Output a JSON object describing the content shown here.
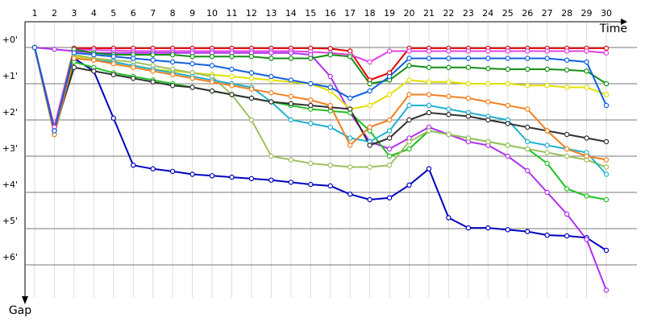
{
  "chart_data": {
    "type": "line",
    "x_label": "Time",
    "y_label": "Gap",
    "categories": [
      "1",
      "2",
      "3",
      "4",
      "5",
      "6",
      "7",
      "8",
      "9",
      "10",
      "11",
      "12",
      "13",
      "14",
      "15",
      "16",
      "17",
      "18",
      "19",
      "20",
      "21",
      "22",
      "23",
      "24",
      "25",
      "26",
      "27",
      "28",
      "29",
      "30"
    ],
    "ylim": [
      -0.6,
      7
    ],
    "yticks": [
      {
        "value": 0,
        "label": "+0'"
      },
      {
        "value": 1,
        "label": "+1'"
      },
      {
        "value": 2,
        "label": "+2'"
      },
      {
        "value": 3,
        "label": "+3'"
      },
      {
        "value": 4,
        "label": "+4'"
      },
      {
        "value": 5,
        "label": "+5'"
      },
      {
        "value": 6,
        "label": "+6'"
      }
    ],
    "y_inverted": true,
    "grid": true,
    "series": [
      {
        "color": "#e00000",
        "values": [
          0,
          2.2,
          0.02,
          0.02,
          0.02,
          0.02,
          0.02,
          0.02,
          0.02,
          0.02,
          0.02,
          0.02,
          0.02,
          0.02,
          0.02,
          0.03,
          0.1,
          0.9,
          0.7,
          0.02,
          0.02,
          0.02,
          0.02,
          0.02,
          0.02,
          0.02,
          0.02,
          0.02,
          0.02,
          0.02
        ]
      },
      {
        "color": "#e040e0",
        "values": [
          0,
          2.2,
          0.05,
          0.07,
          0.08,
          0.1,
          0.1,
          0.1,
          0.1,
          0.1,
          0.1,
          0.1,
          0.1,
          0.1,
          0.12,
          0.15,
          0.2,
          0.4,
          0.1,
          0.1,
          0.1,
          0.1,
          0.1,
          0.1,
          0.1,
          0.1,
          0.1,
          0.1,
          0.1,
          0.15
        ]
      },
      {
        "color": "#0000c0",
        "values": [
          0,
          2.3,
          0.3,
          0.65,
          1.95,
          3.25,
          3.35,
          3.42,
          3.5,
          3.54,
          3.58,
          3.62,
          3.66,
          3.72,
          3.78,
          3.82,
          4.05,
          4.2,
          4.15,
          3.8,
          3.35,
          4.7,
          4.98,
          4.98,
          5.03,
          5.08,
          5.18,
          5.2,
          5.25,
          5.6
        ]
      },
      {
        "color": "#b030f0",
        "values": [
          0,
          0.05,
          0.1,
          0.15,
          0.15,
          0.15,
          0.15,
          0.15,
          0.15,
          0.15,
          0.15,
          0.15,
          0.15,
          0.15,
          0.2,
          0.8,
          1.8,
          2.6,
          2.8,
          2.5,
          2.2,
          2.4,
          2.6,
          2.7,
          3.0,
          3.4,
          4.0,
          4.6,
          5.3,
          6.7
        ]
      },
      {
        "color": "#109010",
        "values": [
          0,
          2.4,
          0.05,
          0.15,
          0.2,
          0.2,
          0.2,
          0.2,
          0.25,
          0.25,
          0.25,
          0.25,
          0.3,
          0.3,
          0.3,
          0.2,
          0.25,
          1.0,
          0.9,
          0.5,
          0.55,
          0.55,
          0.55,
          0.58,
          0.6,
          0.6,
          0.6,
          0.62,
          0.65,
          1.0
        ]
      },
      {
        "color": "#20c020",
        "values": [
          0,
          2.4,
          0.4,
          0.55,
          0.7,
          0.8,
          0.9,
          1.0,
          1.1,
          1.2,
          1.3,
          1.4,
          1.5,
          1.6,
          1.7,
          1.75,
          1.8,
          2.3,
          3.0,
          2.8,
          2.3,
          2.4,
          2.5,
          2.6,
          2.7,
          2.8,
          3.2,
          3.9,
          4.1,
          4.2
        ]
      },
      {
        "color": "#e0e000",
        "values": [
          0,
          2.4,
          0.25,
          0.3,
          0.4,
          0.5,
          0.6,
          0.65,
          0.7,
          0.75,
          0.8,
          0.85,
          0.9,
          0.95,
          1.0,
          1.2,
          1.7,
          1.6,
          1.3,
          0.9,
          0.95,
          0.95,
          1.0,
          1.0,
          1.0,
          1.05,
          1.05,
          1.1,
          1.1,
          1.3
        ]
      },
      {
        "color": "#a0c060",
        "values": [
          0,
          2.4,
          0.2,
          0.3,
          0.35,
          0.4,
          0.5,
          0.6,
          0.7,
          0.8,
          1.3,
          2.0,
          3.0,
          3.1,
          3.2,
          3.25,
          3.3,
          3.3,
          3.25,
          2.6,
          2.3,
          2.4,
          2.5,
          2.6,
          2.7,
          2.8,
          2.9,
          3.0,
          3.1,
          3.3
        ]
      },
      {
        "color": "#20b0d0",
        "values": [
          0,
          2.3,
          0.3,
          0.35,
          0.4,
          0.5,
          0.6,
          0.7,
          0.8,
          0.9,
          1.0,
          1.1,
          1.5,
          2.0,
          2.1,
          2.2,
          2.5,
          2.6,
          2.3,
          1.6,
          1.6,
          1.7,
          1.8,
          1.9,
          2.0,
          2.6,
          2.7,
          2.8,
          2.9,
          3.5
        ]
      },
      {
        "color": "#303030",
        "values": [
          0,
          2.3,
          0.55,
          0.65,
          0.75,
          0.85,
          0.95,
          1.05,
          1.1,
          1.2,
          1.3,
          1.4,
          1.5,
          1.55,
          1.6,
          1.65,
          1.7,
          2.7,
          2.5,
          2.0,
          1.8,
          1.85,
          1.9,
          2.0,
          2.1,
          2.2,
          2.3,
          2.4,
          2.5,
          2.6
        ]
      },
      {
        "color": "#f08020",
        "values": [
          0,
          2.4,
          0.3,
          0.35,
          0.45,
          0.55,
          0.65,
          0.75,
          0.85,
          0.95,
          1.05,
          1.15,
          1.25,
          1.35,
          1.45,
          1.6,
          2.7,
          2.2,
          2.0,
          1.3,
          1.3,
          1.35,
          1.4,
          1.5,
          1.6,
          1.7,
          2.3,
          2.8,
          3.0,
          3.1
        ]
      },
      {
        "color": "#1060e0",
        "values": [
          0,
          2.3,
          0.15,
          0.2,
          0.25,
          0.3,
          0.35,
          0.4,
          0.45,
          0.5,
          0.6,
          0.7,
          0.8,
          0.9,
          1.0,
          1.1,
          1.4,
          1.2,
          0.8,
          0.3,
          0.3,
          0.3,
          0.3,
          0.3,
          0.3,
          0.3,
          0.3,
          0.35,
          0.4,
          1.6
        ]
      }
    ]
  }
}
